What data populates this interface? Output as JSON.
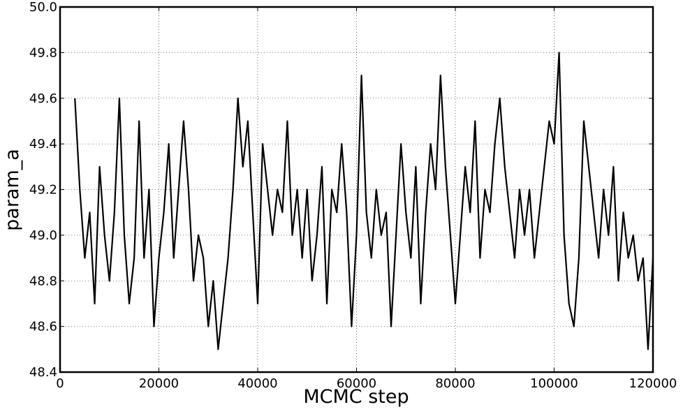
{
  "chart_data": {
    "type": "line",
    "x_label": "MCMC step",
    "y_label": "param_a",
    "color": "#000000",
    "grid": true,
    "xlim": [
      0,
      120000
    ],
    "ylim": [
      48.4,
      50.0
    ],
    "xticks": [
      0,
      20000,
      40000,
      60000,
      80000,
      100000,
      120000
    ],
    "yticks": [
      48.4,
      48.6,
      48.8,
      {
        "value": 49,
        "label": "49.0"
      },
      49.2,
      49.4,
      49.6,
      49.8,
      {
        "value": 50,
        "label": "50.0"
      }
    ],
    "x": [
      3000,
      4000,
      5000,
      6000,
      7000,
      8000,
      9000,
      10000,
      11000,
      12000,
      13000,
      14000,
      15000,
      16000,
      17000,
      18000,
      19000,
      20000,
      21000,
      22000,
      23000,
      24000,
      25000,
      26000,
      27000,
      28000,
      29000,
      30000,
      31000,
      32000,
      33000,
      34000,
      35000,
      36000,
      37000,
      38000,
      39000,
      40000,
      41000,
      42000,
      43000,
      44000,
      45000,
      46000,
      47000,
      48000,
      49000,
      50000,
      51000,
      52000,
      53000,
      54000,
      55000,
      56000,
      57000,
      58000,
      59000,
      60000,
      61000,
      62000,
      63000,
      64000,
      65000,
      66000,
      67000,
      68000,
      69000,
      70000,
      71000,
      72000,
      73000,
      74000,
      75000,
      76000,
      77000,
      78000,
      79000,
      80000,
      81000,
      82000,
      83000,
      84000,
      85000,
      86000,
      87000,
      88000,
      89000,
      90000,
      91000,
      92000,
      93000,
      94000,
      95000,
      96000,
      97000,
      98000,
      99000,
      100000,
      101000,
      102000,
      103000,
      104000,
      105000,
      106000,
      107000,
      108000,
      109000,
      110000,
      111000,
      112000,
      113000,
      114000,
      115000,
      116000,
      117000,
      118000,
      119000,
      120000
    ],
    "values": [
      49.6,
      49.2,
      48.9,
      49.1,
      48.7,
      49.3,
      49.0,
      48.8,
      49.1,
      49.6,
      49.0,
      48.7,
      48.9,
      49.5,
      48.9,
      49.2,
      48.6,
      48.9,
      49.1,
      49.4,
      48.9,
      49.2,
      49.5,
      49.2,
      48.8,
      49.0,
      48.9,
      48.6,
      48.8,
      48.5,
      48.7,
      48.9,
      49.2,
      49.6,
      49.3,
      49.5,
      49.1,
      48.7,
      49.4,
      49.2,
      49.0,
      49.2,
      49.1,
      49.5,
      49.0,
      49.2,
      48.9,
      49.2,
      48.8,
      49.0,
      49.3,
      48.7,
      49.2,
      49.1,
      49.4,
      49.1,
      48.6,
      49.0,
      49.7,
      49.1,
      48.9,
      49.2,
      49.0,
      49.1,
      48.6,
      49.0,
      49.4,
      49.1,
      48.9,
      49.3,
      48.7,
      49.1,
      49.4,
      49.2,
      49.7,
      49.3,
      49.0,
      48.7,
      49.0,
      49.3,
      49.1,
      49.5,
      48.9,
      49.2,
      49.1,
      49.4,
      49.6,
      49.3,
      49.1,
      48.9,
      49.2,
      49.0,
      49.2,
      48.9,
      49.1,
      49.3,
      49.5,
      49.4,
      49.8,
      49.0,
      48.7,
      48.6,
      48.9,
      49.5,
      49.3,
      49.1,
      48.9,
      49.2,
      49.0,
      49.3,
      48.8,
      49.1,
      48.9,
      49.0,
      48.8,
      48.9,
      48.5,
      48.9
    ]
  }
}
